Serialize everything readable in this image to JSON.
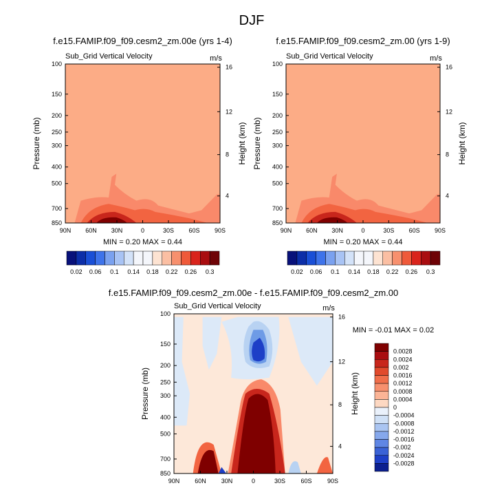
{
  "figure_title": "DJF",
  "colors": {
    "uniform_fill": "#fcac86",
    "warm_light": "#f9896a",
    "warm_mid": "#f26441",
    "warm_dark": "#c8261c",
    "deep_red": "#7f0000",
    "neutral_light": "#fde8d9",
    "cool_light": "#dce9f8",
    "cool_mid": "#b8d2f2",
    "cool_blue": "#6e9be6",
    "cool_dark": "#1d3fc7"
  },
  "chart_data": [
    {
      "type": "heatmap",
      "title": "f.e15.FAMIP.f09_f09.cesm2_zm.00e (yrs 1-4)",
      "subtitle_left": "Sub_Grid Vertical Velocity",
      "units": "m/s",
      "ylabel": "Pressure (mb)",
      "ylabel_right": "Height (km)",
      "x_ticks": [
        "90N",
        "60N",
        "30N",
        "0",
        "30S",
        "60S",
        "90S"
      ],
      "y_ticks": [
        "100",
        "150",
        "200",
        "250",
        "300",
        "400",
        "500",
        "700",
        "850"
      ],
      "y_ticks_right": [
        "16",
        "12",
        "8",
        "4"
      ],
      "min_max": "MIN =  0.20  MAX =  0.44",
      "colorbar_levels": [
        "0.02",
        "0.06",
        "0.1",
        "0.14",
        "0.18",
        "0.22",
        "0.26",
        "0.3"
      ]
    },
    {
      "type": "heatmap",
      "title": "f.e15.FAMIP.f09_f09.cesm2_zm.00 (yrs 1-9)",
      "subtitle_left": "Sub_Grid Vertical Velocity",
      "units": "m/s",
      "ylabel": "Pressure (mb)",
      "ylabel_right": "Height (km)",
      "x_ticks": [
        "90N",
        "60N",
        "30N",
        "0",
        "30S",
        "60S",
        "90S"
      ],
      "y_ticks": [
        "100",
        "150",
        "200",
        "250",
        "300",
        "400",
        "500",
        "700",
        "850"
      ],
      "y_ticks_right": [
        "16",
        "12",
        "8",
        "4"
      ],
      "min_max": "MIN =  0.20  MAX =  0.44",
      "colorbar_levels": [
        "0.02",
        "0.06",
        "0.1",
        "0.14",
        "0.18",
        "0.22",
        "0.26",
        "0.3"
      ]
    },
    {
      "type": "heatmap",
      "title": "f.e15.FAMIP.f09_f09.cesm2_zm.00e - f.e15.FAMIP.f09_f09.cesm2_zm.00",
      "subtitle_left": "Sub_Grid Vertical Velocity",
      "units": "m/s",
      "ylabel": "Pressure (mb)",
      "ylabel_right": "Height (km)",
      "x_ticks": [
        "90N",
        "60N",
        "30N",
        "0",
        "30S",
        "60S",
        "90S"
      ],
      "y_ticks": [
        "100",
        "150",
        "200",
        "250",
        "300",
        "400",
        "500",
        "700",
        "850"
      ],
      "y_ticks_right": [
        "16",
        "12",
        "8",
        "4"
      ],
      "min_max": "MIN =  -0.01  MAX =  0.02",
      "colorbar_levels": [
        "0.0028",
        "0.0024",
        "0.002",
        "0.0016",
        "0.0012",
        "0.0008",
        "0.0004",
        "0",
        "-0.0004",
        "-0.0008",
        "-0.0012",
        "-0.0016",
        "-0.002",
        "-0.0024",
        "-0.0028"
      ]
    }
  ]
}
